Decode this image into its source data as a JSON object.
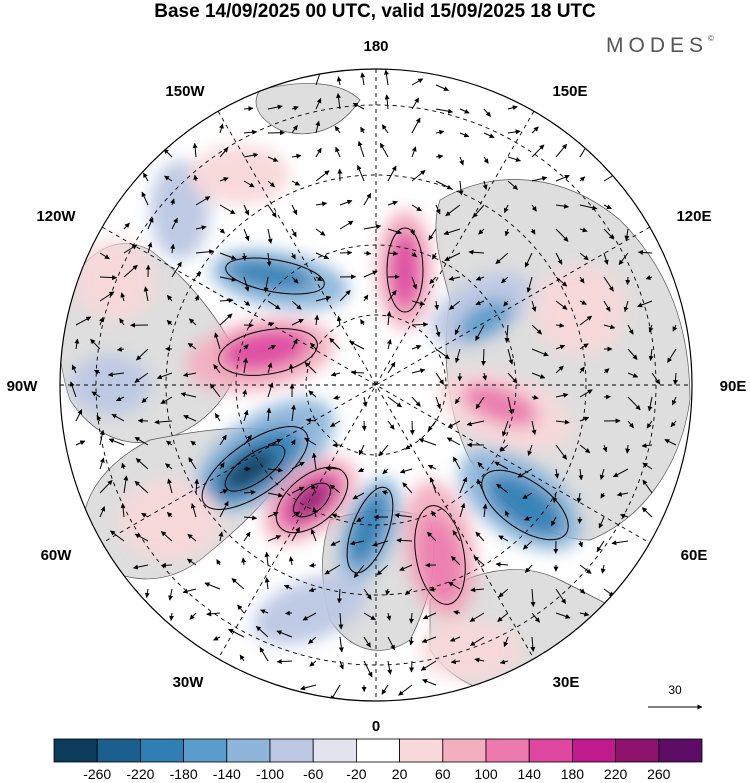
{
  "title": "Base 14/09/2025 00 UTC, valid 15/09/2025 18 UTC",
  "brand": "MODES",
  "brand_mark": "©",
  "longitude_labels": {
    "top": "180",
    "bottom": "0",
    "left": "90W",
    "right": "90E",
    "upper_left_1": "150W",
    "upper_left_2": "120W",
    "lower_left_1": "60W",
    "lower_left_2": "30W",
    "upper_right_1": "150E",
    "upper_right_2": "120E",
    "lower_right_1": "60E",
    "lower_right_2": "30E"
  },
  "vector_reference": "30",
  "colorbar": {
    "labels": [
      "-260",
      "-220",
      "-180",
      "-140",
      "-100",
      "-60",
      "-20",
      "20",
      "60",
      "100",
      "140",
      "180",
      "220",
      "260"
    ],
    "colors": [
      "#0c3b5c",
      "#1b5f8e",
      "#2f7fb5",
      "#5a9ccb",
      "#8db6da",
      "#bcc8e3",
      "#e4e4f0",
      "#ffffff",
      "#f8d8da",
      "#f3afbf",
      "#ec7aae",
      "#de46a0",
      "#c01a8c",
      "#90126f",
      "#5e0d66"
    ]
  },
  "colors": {
    "land": "#dcdcdc",
    "ocean": "#ebebeb"
  }
}
